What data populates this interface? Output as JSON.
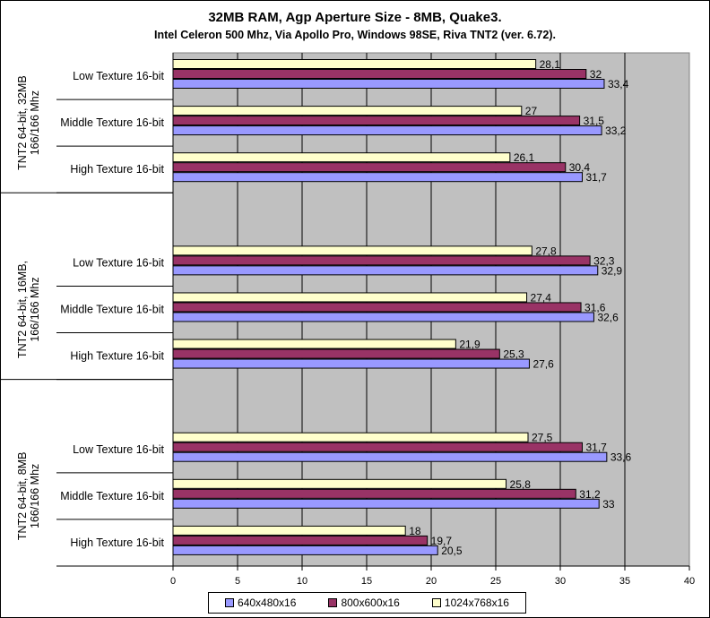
{
  "chart_data": {
    "type": "bar",
    "orientation": "horizontal",
    "title": "32MB RAM,  Agp Aperture Size - 8MB, Quake3.",
    "subtitle": "Intel Celeron 500 Mhz, Via Apollo Pro, Windows 98SE, Riva TNT2 (ver. 6.72).",
    "xlabel": "",
    "ylabel": "",
    "xlim": [
      0,
      40
    ],
    "xticks": [
      0,
      5,
      10,
      15,
      20,
      25,
      30,
      35,
      40
    ],
    "grid": true,
    "legend_position": "bottom",
    "groups": [
      {
        "label": "TNT2 64-bit, 32MB 166/166 Mhz",
        "categories": [
          {
            "label": "Low Texture 16-bit",
            "values": [
              33.4,
              32,
              28.1
            ],
            "labels": [
              "33,4",
              "32",
              "28,1"
            ]
          },
          {
            "label": "Middle Texture 16-bit",
            "values": [
              33.2,
              31.5,
              27
            ],
            "labels": [
              "33,2",
              "31,5",
              "27"
            ]
          },
          {
            "label": "High Texture 16-bit",
            "values": [
              31.7,
              30.4,
              26.1
            ],
            "labels": [
              "31,7",
              "30,4",
              "26,1"
            ]
          }
        ]
      },
      {
        "label": "TNT2 64-bit, 16MB, 166/166 Mhz",
        "categories": [
          {
            "label": "Low Texture 16-bit",
            "values": [
              32.9,
              32.3,
              27.8
            ],
            "labels": [
              "32,9",
              "32,3",
              "27,8"
            ]
          },
          {
            "label": "Middle Texture 16-bit",
            "values": [
              32.6,
              31.6,
              27.4
            ],
            "labels": [
              "32,6",
              "31,6",
              "27,4"
            ]
          },
          {
            "label": "High Texture 16-bit",
            "values": [
              27.6,
              25.3,
              21.9
            ],
            "labels": [
              "27,6",
              "25,3",
              "21,9"
            ]
          }
        ]
      },
      {
        "label": "TNT2 64-bit, 8MB 166/166 Mhz",
        "categories": [
          {
            "label": "Low Texture 16-bit",
            "values": [
              33.6,
              31.7,
              27.5
            ],
            "labels": [
              "33,6",
              "31,7",
              "27,5"
            ]
          },
          {
            "label": "Middle Texture 16-bit",
            "values": [
              33,
              31.2,
              25.8
            ],
            "labels": [
              "33",
              "31,2",
              "25,8"
            ]
          },
          {
            "label": "High Texture 16-bit",
            "values": [
              20.5,
              19.7,
              18
            ],
            "labels": [
              "20,5",
              "19,7",
              "18"
            ]
          }
        ]
      }
    ],
    "series": [
      {
        "name": "640x480x16",
        "color": "#9999ff"
      },
      {
        "name": "800x600x16",
        "color": "#993366"
      },
      {
        "name": "1024x768x16",
        "color": "#ffffcc"
      }
    ],
    "plot_background": "#c0c0c0"
  }
}
